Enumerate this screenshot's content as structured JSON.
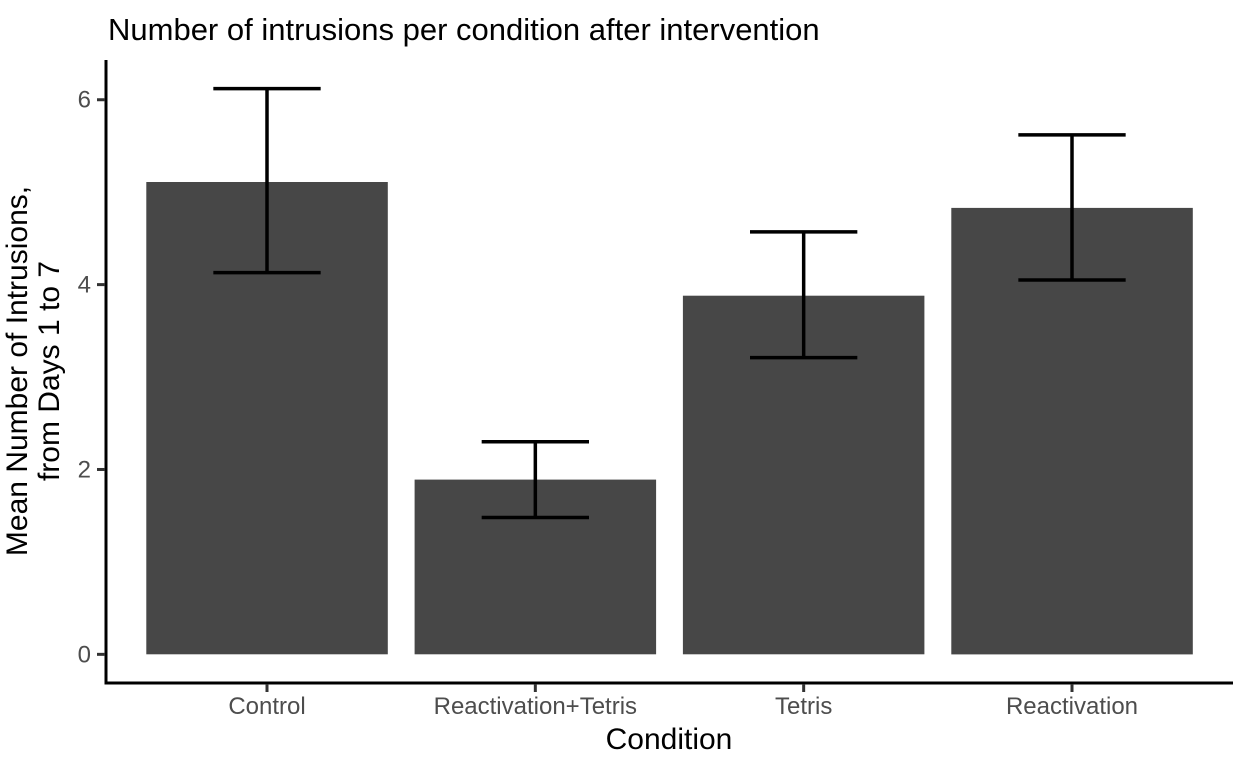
{
  "chart_data": {
    "type": "bar",
    "title": "Number of intrusions per condition after intervention",
    "xlabel": "Condition",
    "ylabel_lines": [
      "Mean Number of Intrusions,",
      "from Days 1 to 7"
    ],
    "categories": [
      "Control",
      "Reactivation+Tetris",
      "Tetris",
      "Reactivation"
    ],
    "values": [
      5.11,
      1.89,
      3.88,
      4.83
    ],
    "error_low": [
      4.13,
      1.48,
      3.21,
      4.05
    ],
    "error_high": [
      6.12,
      2.3,
      4.57,
      5.62
    ],
    "yticks": [
      0,
      2,
      4,
      6
    ],
    "ylim": [
      -0.31,
      6.43
    ],
    "grid": "off",
    "legend": "none",
    "bar_color": "#474747",
    "error_bar_color": "#000000",
    "axis_line_color": "#000000",
    "tick_mark_color": "#333333",
    "tick_label_color": "#4d4d4d",
    "title_color": "#000000",
    "axis_title_color": "#000000",
    "background_color": "#ffffff"
  }
}
